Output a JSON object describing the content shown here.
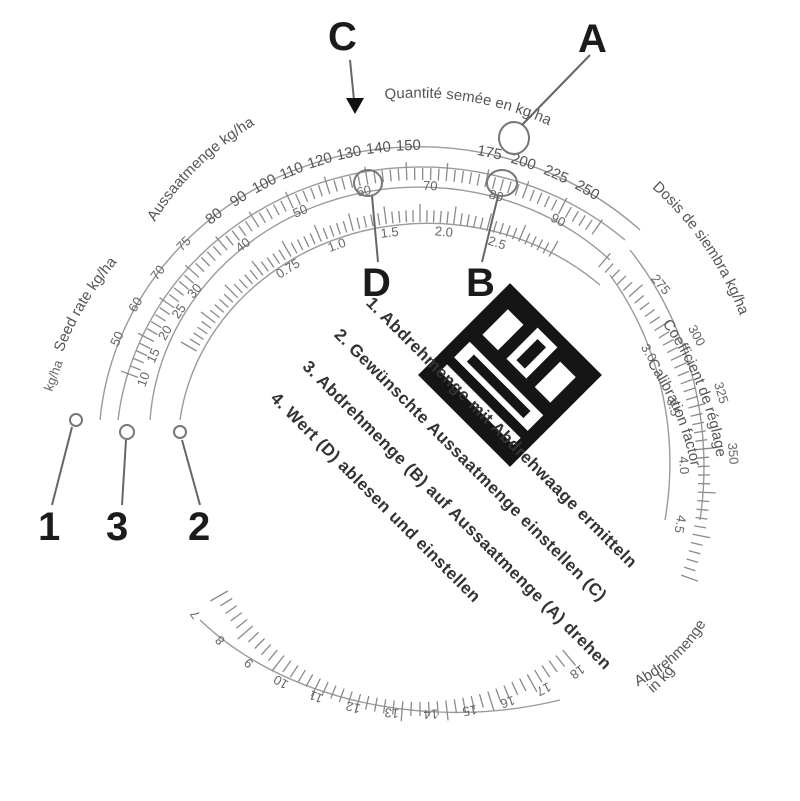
{
  "callouts": {
    "A": "A",
    "B": "B",
    "C": "C",
    "D": "D",
    "n1": "1",
    "n2": "2",
    "n3": "3"
  },
  "scales": {
    "seed_rate": "Seed rate kg/ha",
    "outer_top_left": "Aussaatmenge kg/ha",
    "outer_top_right": "Quantité semée en kg/ha",
    "right_outer": "Dosis de siembra kg/ha",
    "kg_ha": "kg/ha",
    "right_inner_1": "Coefficient de réglage",
    "right_inner_2": "Calibration factor",
    "bottom_right_1": "Abdrehmenge",
    "bottom_right_2": "in kg"
  },
  "ticks": {
    "outer_top": [
      "80",
      "90",
      "100",
      "110",
      "120",
      "130",
      "140",
      "150"
    ],
    "outer_top_right": [
      "175",
      "200",
      "225",
      "250"
    ],
    "middle_top": [
      "30",
      "40",
      "50",
      "60",
      "70",
      "80",
      "90"
    ],
    "inner_top": [
      "0.75",
      "1.0",
      "1.5",
      "2.0",
      "2.5"
    ],
    "left_outer": [
      "50",
      "60",
      "70",
      "75"
    ],
    "left_middle": [
      "10",
      "15",
      "20",
      "25"
    ],
    "right_outer": [
      "275",
      "300",
      "325",
      "350"
    ],
    "right_inner": [
      "3.0",
      "3.5",
      "4.0",
      "4.5"
    ],
    "bottom": [
      "7",
      "8",
      "9",
      "10",
      "11",
      "12",
      "13",
      "14",
      "15",
      "16",
      "17",
      "18"
    ]
  },
  "instructions": [
    "1. Abdrehmenge mit Abdrehwaage ermitteln",
    "2. Gewünschte Aussaatmenge einstellen (C)",
    "3. Abdrehmenge (B) auf Aussaatmenge (A) drehen",
    "4. Wert (D) ablesen und einstellen"
  ],
  "colors": {
    "ink": "#1b1b1b",
    "print": "#666666",
    "logo": "#151515"
  }
}
